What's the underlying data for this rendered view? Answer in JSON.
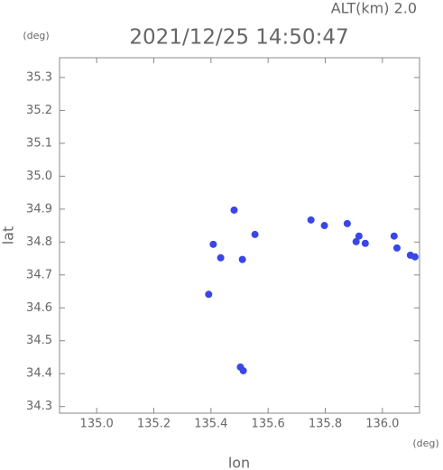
{
  "chart_data": {
    "type": "scatter",
    "title": "2021/12/25 14:50:47",
    "subtitle": "ALT(km) 2.0",
    "x_label": "lon",
    "y_label": "lat",
    "x_unit": "(deg)",
    "y_unit": "(deg)",
    "xlim": [
      134.87,
      136.13
    ],
    "ylim": [
      34.28,
      35.36
    ],
    "xticks": [
      {
        "value": 135,
        "label": "135.0"
      },
      135.2,
      135.4,
      135.6,
      135.8,
      {
        "value": 136,
        "label": "136.0"
      }
    ],
    "yticks": [
      34.3,
      34.4,
      34.5,
      34.6,
      34.7,
      34.8,
      34.9,
      {
        "value": 35,
        "label": "35.0"
      },
      35.1,
      35.2,
      35.3
    ],
    "series": [
      {
        "color": "#3a46e6",
        "x": [
          135.481,
          135.554,
          135.408,
          135.434,
          135.51,
          135.392,
          135.503,
          135.513,
          135.75,
          135.797,
          135.877,
          135.918,
          135.94,
          135.908,
          136.041,
          136.051,
          136.098,
          136.114
        ],
        "y": [
          34.897,
          34.823,
          34.793,
          34.752,
          34.747,
          34.641,
          34.42,
          34.409,
          34.867,
          34.85,
          34.856,
          34.818,
          34.796,
          34.801,
          34.818,
          34.782,
          34.76,
          34.755
        ]
      }
    ]
  }
}
